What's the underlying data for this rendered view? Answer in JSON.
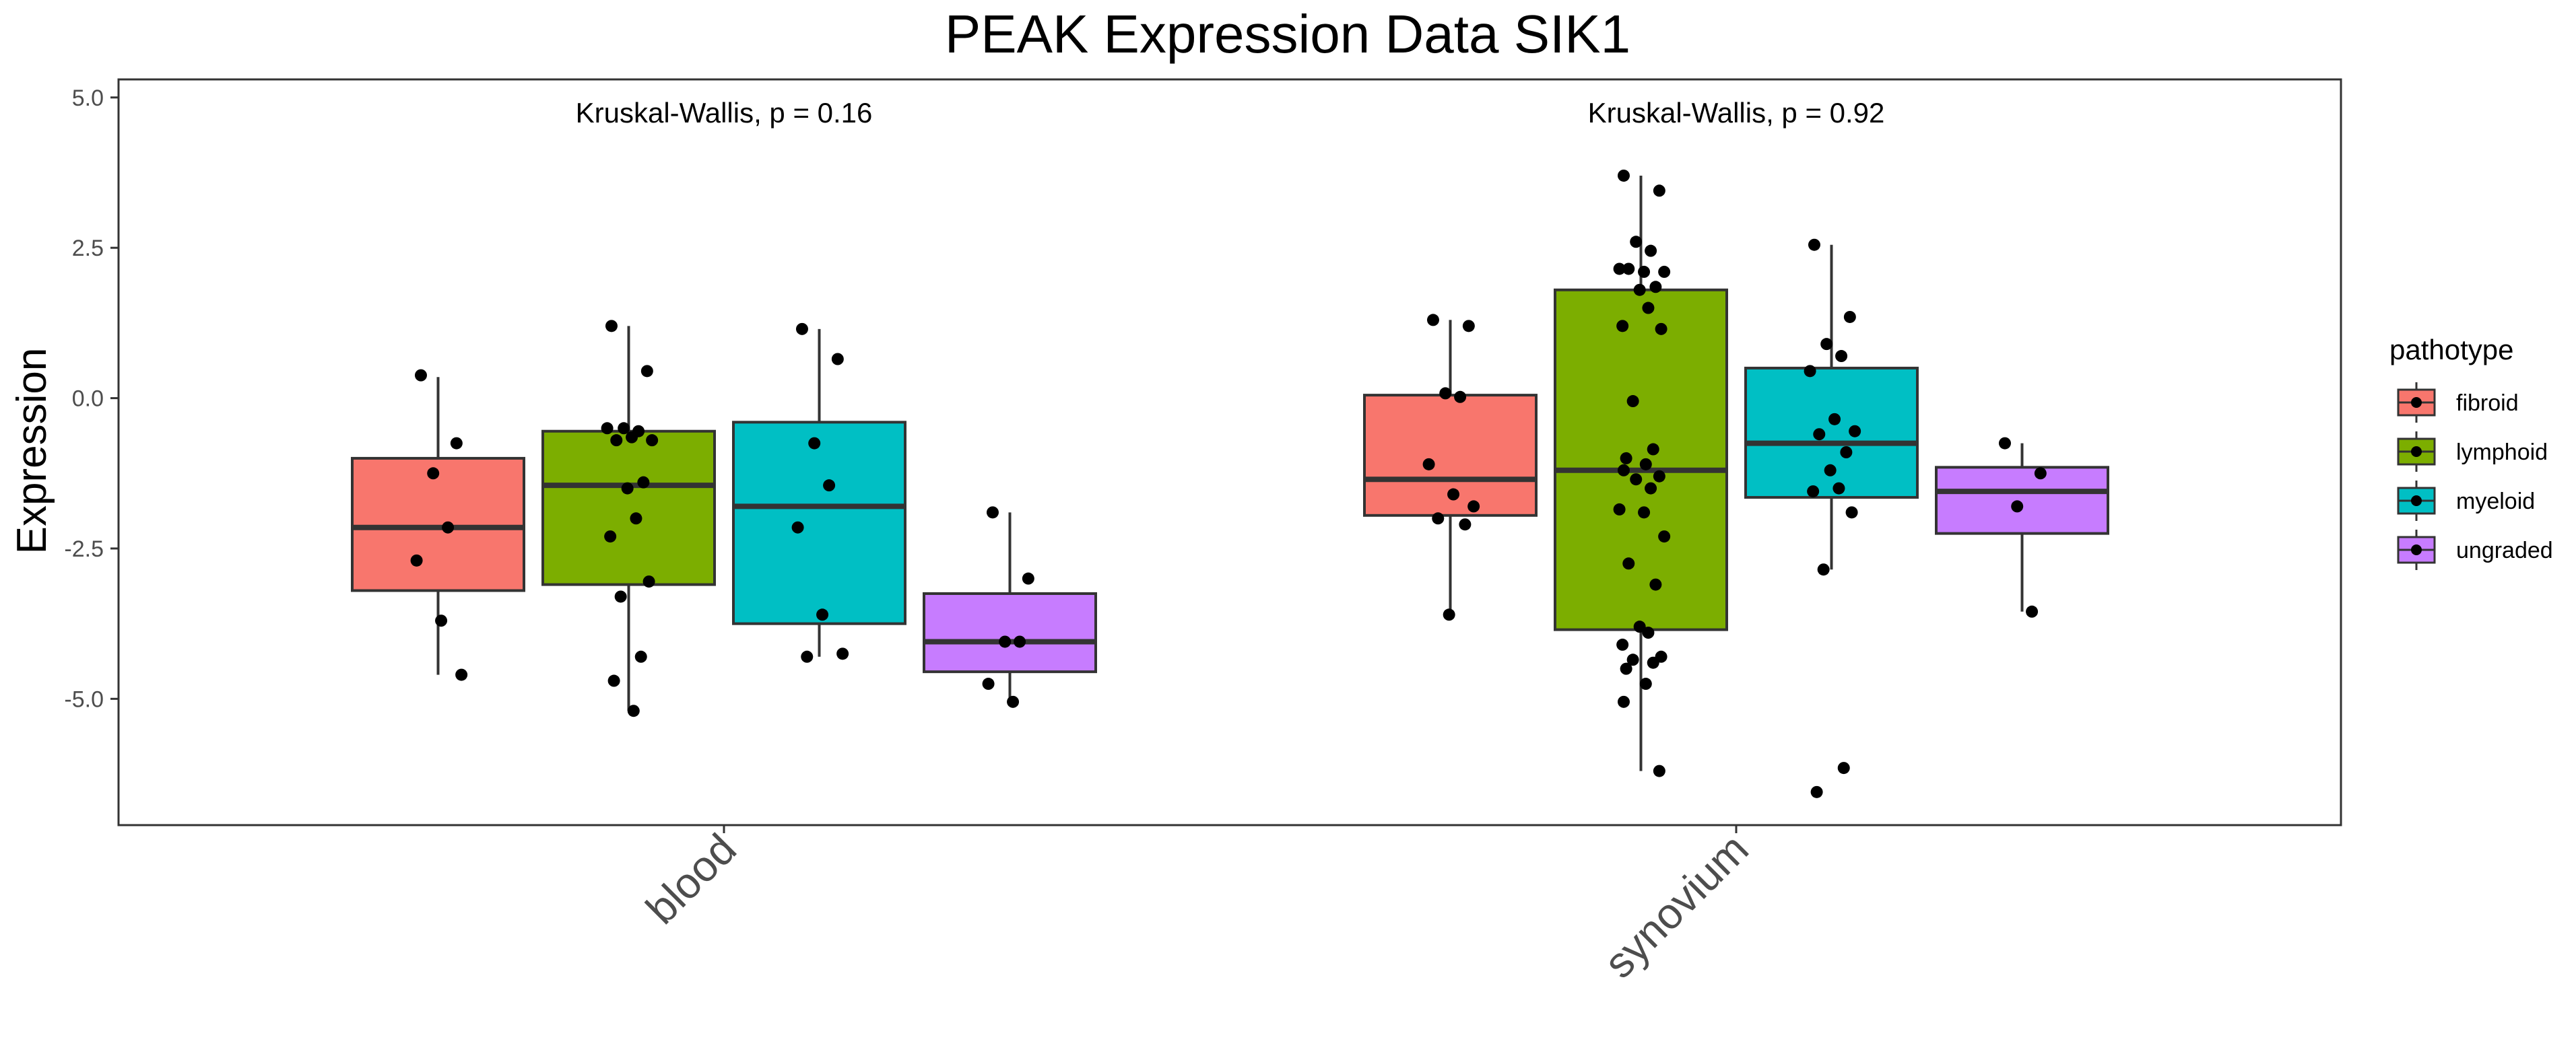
{
  "chart_data": {
    "type": "box",
    "title": "PEAK Expression Data SIK1",
    "xlabel": "",
    "ylabel": "Expression",
    "ylim": [
      -7.1,
      5.3
    ],
    "yticks": [
      5.0,
      2.5,
      0.0,
      -2.5,
      -5.0
    ],
    "ytick_labels": [
      "5.0",
      "2.5",
      "0.0",
      "-2.5",
      "-5.0"
    ],
    "categories": [
      "blood",
      "synovium"
    ],
    "annotations": [
      "Kruskal-Wallis, p = 0.16",
      "Kruskal-Wallis, p = 0.92"
    ],
    "legend": {
      "title": "pathotype",
      "position": "right",
      "entries": [
        "fibroid",
        "lymphoid",
        "myeloid",
        "ungraded"
      ]
    },
    "colors": {
      "fibroid": "#F8766D",
      "lymphoid": "#7CAE00",
      "myeloid": "#00BFC4",
      "ungraded": "#C77CFF"
    },
    "grid": false,
    "series": [
      {
        "name": "fibroid",
        "boxes": [
          {
            "category": "blood",
            "min": -4.6,
            "q1": -3.2,
            "median": -2.15,
            "q3": -1.0,
            "max": 0.35,
            "points": [
              0.38,
              -0.75,
              -1.25,
              -2.15,
              -2.7,
              -3.7,
              -4.6
            ]
          },
          {
            "category": "synovium",
            "min": -3.6,
            "q1": -1.95,
            "median": -1.35,
            "q3": 0.05,
            "max": 1.3,
            "points": [
              1.3,
              1.2,
              0.08,
              0.02,
              -1.1,
              -1.6,
              -1.8,
              -2.0,
              -2.1,
              -3.6
            ]
          }
        ]
      },
      {
        "name": "lymphoid",
        "boxes": [
          {
            "category": "blood",
            "min": -5.2,
            "q1": -3.1,
            "median": -1.45,
            "q3": -0.55,
            "max": 1.2,
            "points": [
              1.2,
              0.45,
              -0.5,
              -0.55,
              -0.5,
              -0.65,
              -0.7,
              -0.7,
              -1.4,
              -1.5,
              -2.0,
              -2.3,
              -3.05,
              -3.3,
              -4.3,
              -4.7,
              -5.2
            ]
          },
          {
            "category": "synovium",
            "min": -6.2,
            "q1": -3.85,
            "median": -1.2,
            "q3": 1.8,
            "max": 3.7,
            "points": [
              3.7,
              3.45,
              2.6,
              2.45,
              2.15,
              2.1,
              2.1,
              2.15,
              1.85,
              1.8,
              1.5,
              1.2,
              1.15,
              -0.05,
              -0.85,
              -1.0,
              -1.1,
              -1.2,
              -1.3,
              -1.35,
              -1.5,
              -1.85,
              -1.9,
              -2.3,
              -2.75,
              -3.1,
              -3.8,
              -3.9,
              -4.1,
              -4.3,
              -4.35,
              -4.4,
              -4.5,
              -4.75,
              -5.05,
              -6.2
            ]
          }
        ]
      },
      {
        "name": "myeloid",
        "boxes": [
          {
            "category": "blood",
            "min": -4.3,
            "q1": -3.75,
            "median": -1.8,
            "q3": -0.4,
            "max": 1.15,
            "points": [
              1.15,
              0.65,
              -0.75,
              -1.45,
              -2.15,
              -3.6,
              -4.25,
              -4.3
            ]
          },
          {
            "category": "synovium",
            "min": -2.85,
            "q1": -1.65,
            "median": -0.75,
            "q3": 0.5,
            "max": 2.55,
            "points": [
              2.55,
              1.35,
              0.9,
              0.7,
              0.45,
              -0.35,
              -0.55,
              -0.6,
              -0.9,
              -1.2,
              -1.5,
              -1.55,
              -1.9,
              -2.85,
              -6.15,
              -6.55
            ]
          }
        ]
      },
      {
        "name": "ungraded",
        "boxes": [
          {
            "category": "blood",
            "min": -5.05,
            "q1": -4.55,
            "median": -4.05,
            "q3": -3.25,
            "max": -1.9,
            "points": [
              -1.9,
              -3.0,
              -4.05,
              -4.05,
              -4.75,
              -5.05
            ]
          },
          {
            "category": "synovium",
            "min": -3.55,
            "q1": -2.25,
            "median": -1.55,
            "q3": -1.15,
            "max": -0.75,
            "points": [
              -0.75,
              -1.25,
              -1.8,
              -3.55
            ]
          }
        ]
      }
    ]
  }
}
